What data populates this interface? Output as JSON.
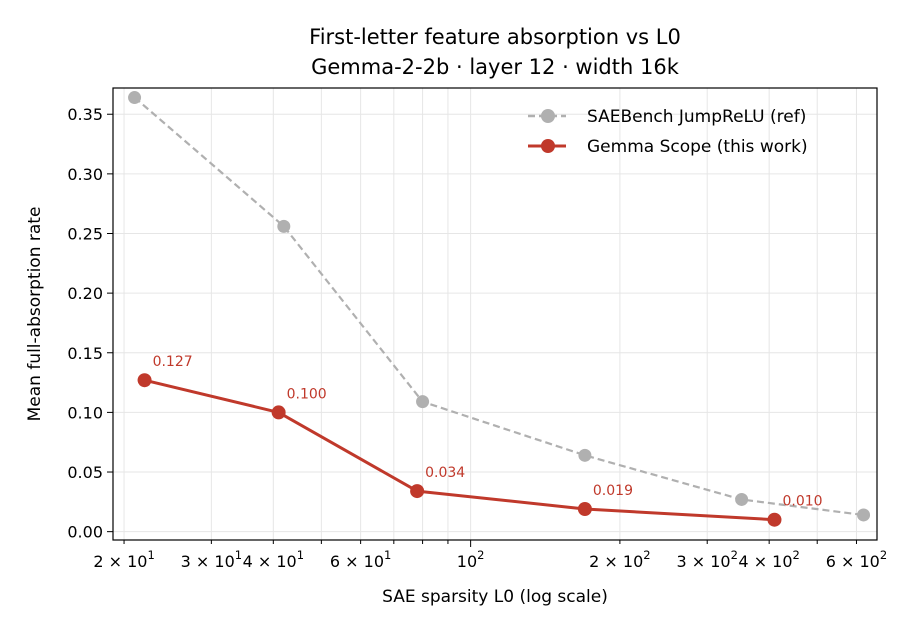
{
  "chart_data": {
    "type": "line",
    "title": "First-letter feature absorption vs L0",
    "subtitle": "Gemma-2-2b · layer 12 · width 16k",
    "xlabel": "SAE sparsity L0 (log scale)",
    "ylabel": "Mean full-absorption rate",
    "x_scale": "log",
    "xlim": [
      19,
      660
    ],
    "ylim": [
      -0.007,
      0.372
    ],
    "grid": true,
    "legend_position": "top-right",
    "x_ticks": [
      {
        "value": 20,
        "mant": "2",
        "exp": "1"
      },
      {
        "value": 30,
        "mant": "3",
        "exp": "1"
      },
      {
        "value": 40,
        "mant": "4",
        "exp": "1"
      },
      {
        "value": 60,
        "mant": "6",
        "exp": "1"
      },
      {
        "value": 100,
        "mant": "",
        "exp": "2"
      },
      {
        "value": 200,
        "mant": "2",
        "exp": "2"
      },
      {
        "value": 300,
        "mant": "3",
        "exp": "2"
      },
      {
        "value": 400,
        "mant": "4",
        "exp": "2"
      },
      {
        "value": 600,
        "mant": "6",
        "exp": "2"
      }
    ],
    "x_minor_ticks": [
      50,
      70,
      80,
      90,
      500
    ],
    "y_ticks": [
      {
        "value": 0.0,
        "label": "0.00"
      },
      {
        "value": 0.05,
        "label": "0.05"
      },
      {
        "value": 0.1,
        "label": "0.10"
      },
      {
        "value": 0.15,
        "label": "0.15"
      },
      {
        "value": 0.2,
        "label": "0.20"
      },
      {
        "value": 0.25,
        "label": "0.25"
      },
      {
        "value": 0.3,
        "label": "0.30"
      },
      {
        "value": 0.35,
        "label": "0.35"
      }
    ],
    "series": [
      {
        "name": "SAEBench JumpReLU (ref)",
        "color": "#b0b0b0",
        "style": "dashed",
        "x": [
          21,
          42,
          80,
          170,
          352,
          620
        ],
        "y": [
          0.364,
          0.256,
          0.109,
          0.064,
          0.027,
          0.014
        ]
      },
      {
        "name": "Gemma Scope (this work)",
        "color": "#c0392b",
        "style": "solid",
        "x": [
          22,
          41,
          78,
          170,
          410
        ],
        "y": [
          0.127,
          0.1,
          0.034,
          0.019,
          0.01
        ],
        "labels": [
          "0.127",
          "0.100",
          "0.034",
          "0.019",
          "0.010"
        ]
      }
    ]
  }
}
